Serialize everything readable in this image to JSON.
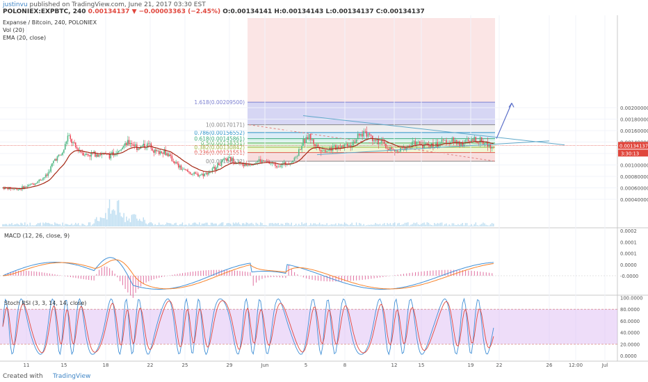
{
  "header": {
    "user": "justinvu",
    "published": "published on TradingView.com, June 21, 2017 03:30 EST",
    "symbol": "POLONIEX:EXPBTC, 240",
    "last": "0.00134137",
    "change": "−0.00003363 (−2.45%)",
    "o": "O:0.00134141",
    "h": "H:0.00134143",
    "l": "L:0.00134137",
    "c": "C:0.00134137"
  },
  "legend": {
    "title": "Expanse / Bitcoin, 240, POLONIEX",
    "vol": "Vol (20)",
    "ema": "EMA (20, close)",
    "macd": "MACD (12, 26, close, 9)",
    "stoch": "Stoch RSI (3, 3, 14, 14, close)"
  },
  "price_axis": {
    "ticks": [
      "0.00200000",
      "0.00180000",
      "0.00160000",
      "0.00140000",
      "0.00120000",
      "0.00100000",
      "0.00080000",
      "0.00060000",
      "0.00040000"
    ],
    "tick_values": [
      0.002,
      0.0018,
      0.0016,
      0.0014,
      0.0012,
      0.001,
      0.0008,
      0.0006,
      0.0004
    ],
    "last_label": "0.00134137",
    "countdown": "3:30:13"
  },
  "fib": {
    "levels": [
      {
        "label": "1.618(0.00209500)",
        "value": 0.002095,
        "color": "#7b7fd1"
      },
      {
        "label": "1(0.00170171)",
        "value": 0.00170171,
        "color": "#888888"
      },
      {
        "label": "0.786(0.00156552)",
        "value": 0.00156552,
        "color": "#2b92c9"
      },
      {
        "label": "0.618(0.00145861)",
        "value": 0.00145861,
        "color": "#3aab7a"
      },
      {
        "label": "0.5(0.00138351)",
        "value": 0.00138351,
        "color": "#4caf50"
      },
      {
        "label": "0.382(0.00130842)",
        "value": 0.00130842,
        "color": "#9bb53a"
      },
      {
        "label": "0.236(0.00121551)",
        "value": 0.00121551,
        "color": "#e0463c"
      },
      {
        "label": "0(0.00106532)",
        "value": 0.00106532,
        "color": "#888888"
      }
    ]
  },
  "macd_axis": {
    "ticks": [
      "0.0002",
      "0.0001",
      "0.0001",
      "0.0000",
      "-0.0000"
    ],
    "tick_values": [
      0.0002,
      0.00015,
      0.0001,
      5e-05,
      0
    ]
  },
  "stoch_axis": {
    "ticks": [
      "100.0000",
      "80.0000",
      "60.0000",
      "40.0000",
      "20.0000",
      "0.0000"
    ],
    "tick_values": [
      100,
      80,
      60,
      40,
      20,
      0
    ]
  },
  "time_axis": {
    "labels": [
      "11",
      "15",
      "18",
      "22",
      "25",
      "29",
      "Jun",
      "5",
      "8",
      "12",
      "15",
      "19",
      "22",
      "26",
      "12:00",
      "Jul"
    ]
  },
  "colors": {
    "up": "#53b987",
    "down": "#eb4d5c",
    "ema": "#a52714",
    "trend": "#5fa8c9",
    "macd": "#3f8fd6",
    "signal": "#f7822a",
    "hist_pos": "#e06fa0",
    "stoch_k": "#3f8fd6",
    "stoch_d": "#e0463c",
    "band": "#d9b3f2",
    "vol": "#8fc7e8"
  },
  "footer": {
    "created": "Created with",
    "brand": "TradingView"
  }
}
